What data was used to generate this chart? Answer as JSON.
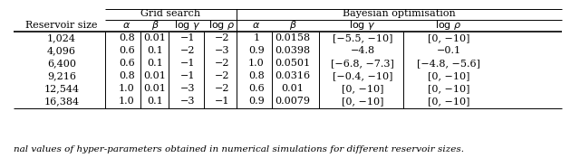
{
  "title_gs": "Grid search",
  "title_bo": "Bayesian optimisation",
  "col_headers_gs": [
    "α",
    "β",
    "log γ",
    "log ρ"
  ],
  "col_headers_bo": [
    "α",
    "β",
    "log γ",
    "log ρ"
  ],
  "reservoir_sizes": [
    "1,024",
    "4,096",
    "6,400",
    "9,216",
    "12,544",
    "16,384"
  ],
  "gs_data": [
    [
      "0.8",
      "0.01",
      "−1",
      "−2"
    ],
    [
      "0.6",
      "0.1",
      "−2",
      "−3"
    ],
    [
      "0.6",
      "0.1",
      "−1",
      "−2"
    ],
    [
      "0.8",
      "0.01",
      "−1",
      "−2"
    ],
    [
      "1.0",
      "0.01",
      "−3",
      "−2"
    ],
    [
      "1.0",
      "0.1",
      "−3",
      "−1"
    ]
  ],
  "bo_data": [
    [
      "1",
      "0.0158",
      "[−5.5, −10]",
      "[0, −10]"
    ],
    [
      "0.9",
      "0.0398",
      "−4.8",
      "−0.1"
    ],
    [
      "1.0",
      "0.0501",
      "[−6.8, −7.3]",
      "[−4.8, −5.6]"
    ],
    [
      "0.8",
      "0.0316",
      "[−0.4, −10]",
      "[0, −10]"
    ],
    [
      "0.6",
      "0.01",
      "[0, −10]",
      "[0, −10]"
    ],
    [
      "0.9",
      "0.0079",
      "[0, −10]",
      "[0, −10]"
    ]
  ],
  "caption": "nal values of hyper-parameters obtained in numerical simulations for different reservoir sizes.",
  "bg": "#ffffff",
  "fg": "#000000",
  "fs": 8.0
}
